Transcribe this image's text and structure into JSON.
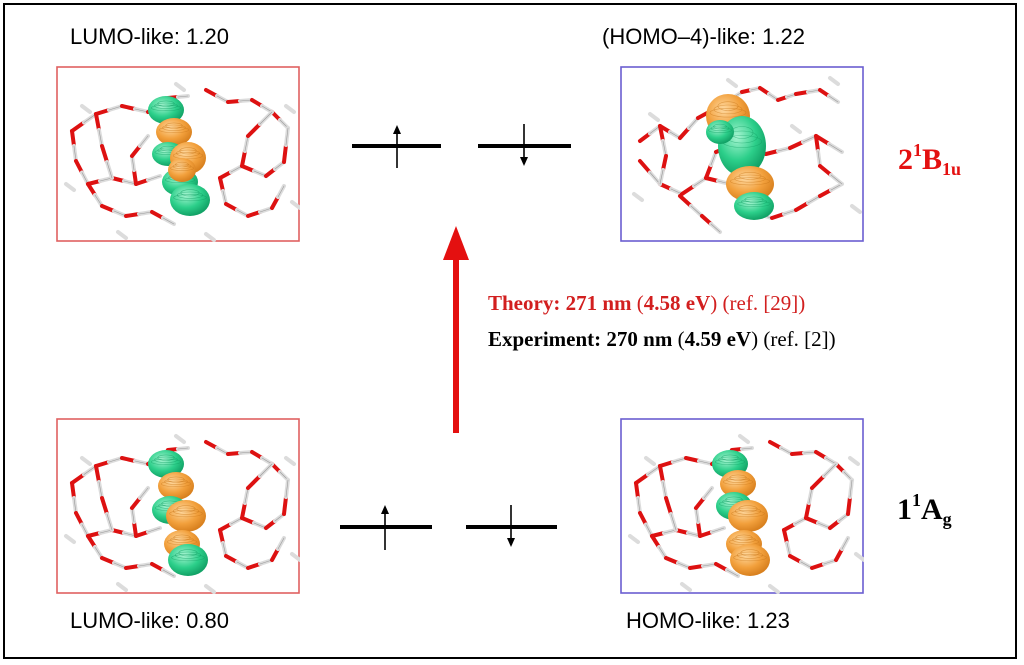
{
  "orbitals": {
    "top_left": "LUMO-like: 1.20",
    "top_right": "(HOMO–4)-like: 1.22",
    "bottom_left": "LUMO-like: 0.80",
    "bottom_right": "HOMO-like: 1.23"
  },
  "states": {
    "excited": {
      "num": "2",
      "sup": "1",
      "letter": "B",
      "sub": "1u"
    },
    "ground": {
      "num": "1",
      "sup": "1",
      "letter": "A",
      "sub": "g"
    }
  },
  "transition": {
    "theory": {
      "label": "Theory:",
      "nm": "271 nm",
      "ev_open": "(",
      "ev": "4.58 eV",
      "ev_close": ")",
      "ref": "(ref.  [29])"
    },
    "experiment": {
      "label": "Experiment:",
      "nm": "270 nm",
      "ev_open": "(",
      "ev": "4.59 eV",
      "ev_close": ")",
      "ref": "(ref. [2])"
    }
  },
  "colors": {
    "red": "#e41010",
    "theory_text": "#d21f1f",
    "left_box": "#e06060",
    "right_box": "#6a5ed0",
    "orbital_green": "#2ccf8a",
    "orbital_orange": "#f2a03c",
    "bond_red": "#dd1111"
  }
}
